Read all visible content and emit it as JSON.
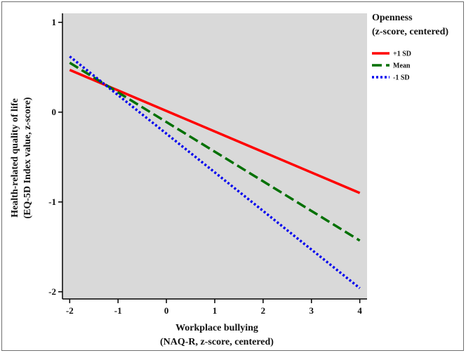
{
  "chart_data": {
    "type": "line",
    "title": "",
    "xlabel": [
      "Workplace bullying",
      "(NAQ-R, z-score, centered)"
    ],
    "ylabel": [
      "Health-related quality of life",
      "(EQ-5D Index value, z-score)"
    ],
    "xlim": [
      -2.15,
      4.15
    ],
    "ylim": [
      -2.08,
      1.1
    ],
    "xticks": [
      -2,
      -1,
      0,
      1,
      2,
      3,
      4
    ],
    "yticks": [
      -2,
      -1,
      0,
      1
    ],
    "grid": false,
    "background": "#d9d9d9",
    "legend": {
      "placement": "right",
      "title": [
        "Openness",
        "(z-score, centered)"
      ]
    },
    "series": [
      {
        "name": "+1 SD",
        "color": "#ff0000",
        "dash": "solid",
        "x": [
          -2,
          4
        ],
        "y": [
          0.47,
          -0.9
        ]
      },
      {
        "name": "Mean",
        "color": "#007000",
        "dash": "dashed",
        "x": [
          -2,
          4
        ],
        "y": [
          0.55,
          -1.43
        ]
      },
      {
        "name": "-1 SD",
        "color": "#0000ee",
        "dash": "dotted",
        "x": [
          -2,
          4
        ],
        "y": [
          0.62,
          -1.96
        ]
      }
    ]
  }
}
